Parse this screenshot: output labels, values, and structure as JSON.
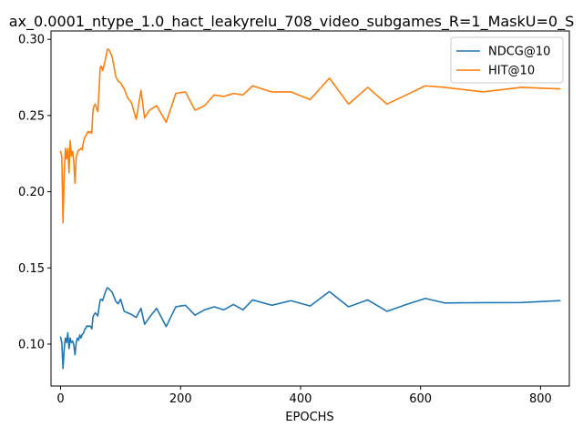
{
  "chart_data": {
    "type": "line",
    "title": "ax_0.0001_ntype_1.0_hact_leakyrelu_708_video_subgames_R=1_MaskU=0_S",
    "xlabel": "EPOCHS",
    "ylabel": "",
    "xlim": [
      -16,
      848
    ],
    "ylim": [
      0.0725,
      0.3055
    ],
    "xticks": [
      0,
      200,
      400,
      600,
      800
    ],
    "xtick_labels": [
      "0",
      "200",
      "400",
      "600",
      "800"
    ],
    "yticks": [
      0.1,
      0.15,
      0.2,
      0.25,
      0.3
    ],
    "ytick_labels": [
      "0.10",
      "0.15",
      "0.20",
      "0.25",
      "0.30"
    ],
    "grid": false,
    "legend_position": "top-right",
    "series": [
      {
        "name": "NDCG@10",
        "color": "#1f77b4",
        "x": [
          0,
          2,
          4,
          6,
          8,
          10,
          12,
          14,
          16,
          18,
          20,
          22,
          24,
          26,
          28,
          30,
          32,
          34,
          36,
          38,
          40,
          42,
          44,
          46,
          48,
          50,
          52,
          54,
          56,
          58,
          60,
          62,
          64,
          66,
          68,
          70,
          72,
          74,
          76,
          78,
          80,
          86,
          92,
          96,
          100,
          106,
          112,
          118,
          126,
          134,
          140,
          148,
          160,
          176,
          192,
          208,
          224,
          240,
          256,
          272,
          288,
          304,
          320,
          352,
          384,
          416,
          448,
          480,
          512,
          544,
          576,
          608,
          640,
          704,
          768,
          832
        ],
        "y": [
          0.1045,
          0.101,
          0.084,
          0.097,
          0.104,
          0.101,
          0.1075,
          0.097,
          0.104,
          0.101,
          0.102,
          0.0995,
          0.093,
          0.101,
          0.104,
          0.1025,
          0.106,
          0.104,
          0.1065,
          0.107,
          0.1095,
          0.1105,
          0.112,
          0.1115,
          0.112,
          0.1115,
          0.11,
          0.118,
          0.1195,
          0.1205,
          0.1195,
          0.1185,
          0.124,
          0.129,
          0.1295,
          0.1285,
          0.131,
          0.1335,
          0.1355,
          0.137,
          0.1365,
          0.134,
          0.128,
          0.1265,
          0.1295,
          0.1215,
          0.1205,
          0.1195,
          0.1175,
          0.1235,
          0.113,
          0.1175,
          0.1235,
          0.1115,
          0.1245,
          0.1255,
          0.119,
          0.1225,
          0.1245,
          0.1225,
          0.126,
          0.1225,
          0.129,
          0.1255,
          0.1285,
          0.125,
          0.1345,
          0.1245,
          0.129,
          0.1215,
          0.126,
          0.13,
          0.127,
          0.1272,
          0.1273,
          0.1285
        ]
      },
      {
        "name": "HIT@10",
        "color": "#ff7f0e",
        "x": [
          0,
          2,
          4,
          6,
          8,
          10,
          12,
          14,
          16,
          18,
          20,
          22,
          24,
          26,
          28,
          30,
          32,
          34,
          36,
          38,
          40,
          42,
          44,
          46,
          48,
          50,
          52,
          54,
          56,
          58,
          60,
          62,
          64,
          66,
          68,
          70,
          72,
          74,
          76,
          78,
          80,
          86,
          92,
          96,
          100,
          106,
          112,
          118,
          126,
          134,
          140,
          148,
          160,
          176,
          192,
          208,
          224,
          240,
          256,
          272,
          288,
          304,
          320,
          352,
          384,
          416,
          448,
          480,
          512,
          544,
          576,
          608,
          640,
          704,
          768,
          832
        ],
        "y": [
          0.2265,
          0.223,
          0.1795,
          0.2115,
          0.2285,
          0.2215,
          0.2285,
          0.2125,
          0.2335,
          0.2235,
          0.2265,
          0.2195,
          0.2055,
          0.2225,
          0.2255,
          0.2275,
          0.2275,
          0.2285,
          0.2275,
          0.2325,
          0.2355,
          0.2365,
          0.2385,
          0.2395,
          0.2385,
          0.2395,
          0.2385,
          0.2535,
          0.2565,
          0.2575,
          0.2545,
          0.2525,
          0.2655,
          0.2815,
          0.2825,
          0.2795,
          0.2825,
          0.2855,
          0.2895,
          0.2935,
          0.2935,
          0.2885,
          0.2755,
          0.2725,
          0.2715,
          0.2675,
          0.2615,
          0.2585,
          0.2475,
          0.2665,
          0.2485,
          0.2535,
          0.2565,
          0.2455,
          0.2645,
          0.2655,
          0.2535,
          0.2565,
          0.2635,
          0.2625,
          0.2645,
          0.2635,
          0.2695,
          0.2655,
          0.2655,
          0.2605,
          0.2745,
          0.2575,
          0.2685,
          0.2575,
          0.2635,
          0.2695,
          0.2685,
          0.2655,
          0.2685,
          0.2675
        ]
      }
    ]
  }
}
